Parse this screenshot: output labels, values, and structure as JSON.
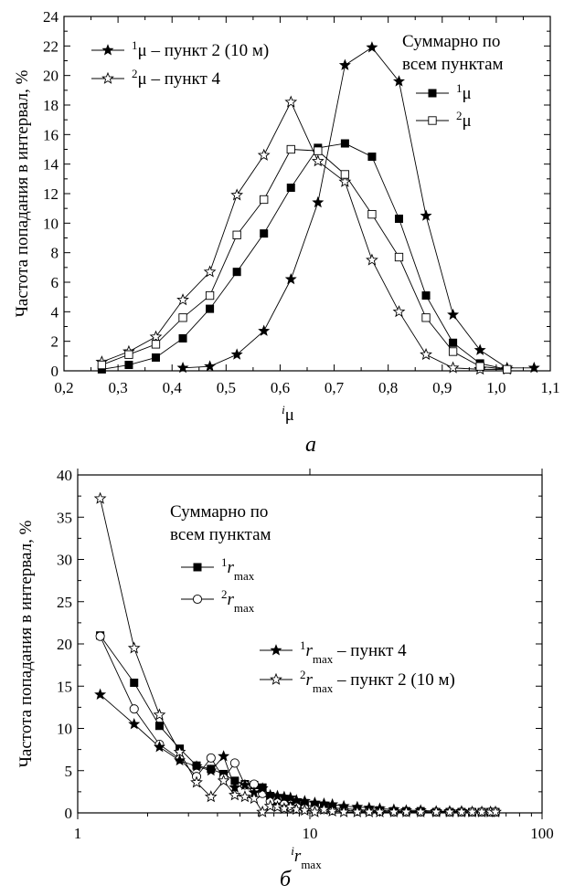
{
  "chart_data": [
    {
      "panel_label": "а",
      "type": "line",
      "ylabel": "Частота попадания в интервал, %",
      "xlabel": {
        "main": "μ",
        "pre_sup": "i"
      },
      "xlim": [
        0.2,
        1.1
      ],
      "ylim": [
        0,
        24
      ],
      "x_ticks": [
        0.2,
        0.3,
        0.4,
        0.5,
        0.6,
        0.7,
        0.8,
        0.9,
        1.0,
        1.1
      ],
      "x_tick_labels": [
        "0,2",
        "0,3",
        "0,4",
        "0,5",
        "0,6",
        "0,7",
        "0,8",
        "0,9",
        "1,0",
        "1,1"
      ],
      "y_ticks": [
        0,
        2,
        4,
        6,
        8,
        10,
        12,
        14,
        16,
        18,
        20,
        22,
        24
      ],
      "y_tick_labels": [
        "0",
        "2",
        "4",
        "6",
        "8",
        "10",
        "12",
        "14",
        "16",
        "18",
        "20",
        "22",
        "24"
      ],
      "legend_group_title": [
        "Суммарно по",
        "всем пунктам"
      ],
      "series": [
        {
          "key": "a_star_filled",
          "marker": "star-filled",
          "legend_sup": "1",
          "legend_main": "μ",
          "legend_suffix": " – пункт 2 (10 м)",
          "x": [
            0.42,
            0.47,
            0.52,
            0.57,
            0.62,
            0.67,
            0.72,
            0.77,
            0.82,
            0.87,
            0.92,
            0.97,
            1.02,
            1.07
          ],
          "y": [
            0.2,
            0.3,
            1.1,
            2.7,
            6.2,
            11.4,
            20.7,
            21.9,
            19.6,
            10.5,
            3.8,
            1.4,
            0.2,
            0.2
          ]
        },
        {
          "key": "a_star_open",
          "marker": "star-open",
          "legend_sup": "2",
          "legend_main": "μ",
          "legend_suffix": " – пункт 4",
          "x": [
            0.27,
            0.32,
            0.37,
            0.42,
            0.47,
            0.52,
            0.57,
            0.62,
            0.67,
            0.72,
            0.77,
            0.82,
            0.87,
            0.92,
            0.97,
            1.02
          ],
          "y": [
            0.6,
            1.3,
            2.3,
            4.8,
            6.7,
            11.9,
            14.6,
            18.2,
            14.2,
            12.8,
            7.5,
            4.0,
            1.1,
            0.2,
            0.1,
            0.1
          ]
        },
        {
          "key": "a_sq_filled",
          "marker": "square-filled",
          "legend_sup": "1",
          "legend_main": "μ",
          "legend_suffix": "",
          "x": [
            0.27,
            0.32,
            0.37,
            0.42,
            0.47,
            0.52,
            0.57,
            0.62,
            0.67,
            0.72,
            0.77,
            0.82,
            0.87,
            0.92,
            0.97,
            1.02
          ],
          "y": [
            0.1,
            0.4,
            0.9,
            2.2,
            4.2,
            6.7,
            9.3,
            12.4,
            15.1,
            15.4,
            14.5,
            10.3,
            5.1,
            1.9,
            0.5,
            0.1
          ]
        },
        {
          "key": "a_sq_open",
          "marker": "square-open",
          "legend_sup": "2",
          "legend_main": "μ",
          "legend_suffix": "",
          "x": [
            0.27,
            0.32,
            0.37,
            0.42,
            0.47,
            0.52,
            0.57,
            0.62,
            0.67,
            0.72,
            0.77,
            0.82,
            0.87,
            0.92,
            0.97,
            1.02
          ],
          "y": [
            0.4,
            1.1,
            1.8,
            3.6,
            5.1,
            9.2,
            11.6,
            15.0,
            14.9,
            13.3,
            10.6,
            7.7,
            3.6,
            1.3,
            0.3,
            0.1
          ]
        }
      ]
    },
    {
      "panel_label": "б",
      "type": "line",
      "x_scale": "log",
      "ylabel": "Частота попадания в интервал, %",
      "xlabel": {
        "main": "r",
        "pre_sup": "i",
        "sub": "max"
      },
      "xlim": [
        1,
        100
      ],
      "ylim": [
        0,
        40
      ],
      "x_ticks": [
        1,
        10,
        100
      ],
      "x_tick_labels": [
        "1",
        "10",
        "100"
      ],
      "y_ticks": [
        0,
        5,
        10,
        15,
        20,
        25,
        30,
        35,
        40
      ],
      "y_tick_labels": [
        "0",
        "5",
        "10",
        "15",
        "20",
        "25",
        "30",
        "35",
        "40"
      ],
      "legend_group_title": [
        "Суммарно по",
        "всем пунктам"
      ],
      "series": [
        {
          "key": "b_sq_filled",
          "marker": "square-filled",
          "legend_sup": "1",
          "legend_main": "r",
          "legend_sub": "max",
          "legend_suffix": "",
          "x": [
            1.25,
            1.75,
            2.25,
            2.75,
            3.25,
            3.75,
            4.25,
            4.75,
            5.25,
            5.75,
            6.25,
            6.75,
            7.25,
            7.75,
            8.25,
            8.75,
            9.5,
            10.5,
            11.5,
            12.5,
            14,
            16,
            18,
            20,
            23,
            26,
            30,
            35,
            40,
            45,
            50,
            55,
            60,
            63
          ],
          "y": [
            21.0,
            15.4,
            10.3,
            7.6,
            5.6,
            5.2,
            4.6,
            3.8,
            3.4,
            3.3,
            3.0,
            2.0,
            1.3,
            1.5,
            0.8,
            1.1,
            0.9,
            0.8,
            0.6,
            0.6,
            0.5,
            0.4,
            0.3,
            0.3,
            0.2,
            0.2,
            0.2,
            0.1,
            0.1,
            0.1,
            0.1,
            0.1,
            0.1,
            0.1
          ]
        },
        {
          "key": "b_circ_open",
          "marker": "circle-open",
          "legend_sup": "2",
          "legend_main": "r",
          "legend_sub": "max",
          "legend_suffix": "",
          "x": [
            1.25,
            1.75,
            2.25,
            2.75,
            3.25,
            3.75,
            4.25,
            4.75,
            5.25,
            5.75,
            6.25,
            6.75,
            7.25,
            7.75,
            8.25,
            8.75,
            9.5,
            10.5,
            11.5,
            12.5,
            14,
            16,
            18,
            20,
            23,
            26,
            30,
            35,
            40,
            45,
            50,
            55,
            60,
            63
          ],
          "y": [
            20.9,
            12.3,
            8.1,
            6.4,
            4.3,
            6.5,
            4.1,
            5.9,
            3.3,
            3.4,
            2.3,
            1.4,
            1.6,
            1.0,
            0.6,
            0.8,
            0.5,
            0.6,
            0.4,
            0.3,
            0.3,
            0.2,
            0.2,
            0.2,
            0.1,
            0.1,
            0.1,
            0.1,
            0.1,
            0.1,
            0.1,
            0.1,
            0.1,
            0.1
          ]
        },
        {
          "key": "b_star_filled",
          "marker": "star-filled",
          "legend_sup": "1",
          "legend_main": "r",
          "legend_sub": "max",
          "legend_suffix": " – пункт 4",
          "x": [
            1.25,
            1.75,
            2.25,
            2.75,
            3.25,
            3.75,
            4.25,
            4.75,
            5.25,
            5.75,
            6.25,
            6.75,
            7.25,
            7.75,
            8.25,
            8.75,
            9.5,
            10.5,
            11.5,
            12.5,
            14,
            16,
            18,
            20,
            23,
            26,
            30,
            35,
            40,
            45,
            50,
            55,
            60,
            63
          ],
          "y": [
            14.0,
            10.5,
            7.8,
            6.2,
            5.5,
            5.0,
            6.7,
            3.0,
            3.3,
            2.4,
            2.9,
            2.1,
            2.0,
            1.9,
            1.8,
            1.5,
            1.4,
            1.2,
            1.1,
            1.0,
            0.8,
            0.7,
            0.6,
            0.5,
            0.4,
            0.3,
            0.3,
            0.2,
            0.2,
            0.2,
            0.1,
            0.1,
            0.1,
            0.1
          ]
        },
        {
          "key": "b_star_open",
          "marker": "star-open",
          "legend_sup": "2",
          "legend_main": "r",
          "legend_sub": "max",
          "legend_suffix": " – пункт 2 (10 м)",
          "x": [
            1.25,
            1.75,
            2.25,
            2.75,
            3.25,
            3.75,
            4.25,
            4.75,
            5.25,
            5.75,
            6.25,
            6.75,
            7.25,
            7.75,
            8.25,
            8.75,
            9.5,
            10.5,
            11.5,
            12.5,
            14,
            16,
            18,
            20,
            23,
            26,
            30,
            35,
            40,
            45,
            50,
            55,
            60,
            63
          ],
          "y": [
            37.2,
            19.5,
            11.6,
            7.2,
            3.6,
            1.9,
            3.8,
            2.1,
            1.9,
            1.7,
            0.1,
            0.8,
            0.7,
            0.5,
            0.7,
            0.4,
            0.3,
            0.1,
            0.4,
            0.2,
            0.1,
            0.1,
            0.1,
            0.1,
            0.1,
            0.1,
            0.1,
            0.1,
            0.1,
            0.1,
            0.1,
            0.1,
            0.1,
            0.1
          ]
        }
      ]
    }
  ]
}
